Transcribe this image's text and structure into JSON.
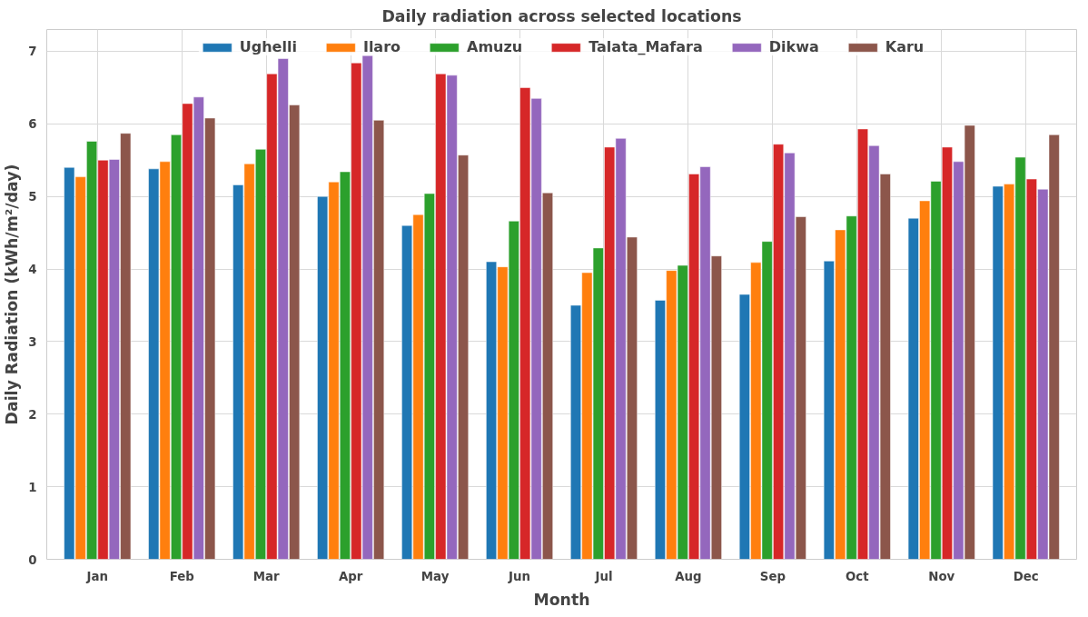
{
  "chart_data": {
    "type": "bar",
    "title": "Daily radiation across selected locations",
    "xlabel": "Month",
    "ylabel": "Daily Radiation (kWh/m²/day)",
    "categories": [
      "Jan",
      "Feb",
      "Mar",
      "Apr",
      "May",
      "Jun",
      "Jul",
      "Aug",
      "Sep",
      "Oct",
      "Nov",
      "Dec"
    ],
    "series": [
      {
        "name": "Ughelli",
        "color": "#1f77b4",
        "values": [
          5.4,
          5.38,
          5.16,
          5.0,
          4.6,
          4.1,
          3.5,
          3.57,
          3.65,
          4.11,
          4.7,
          5.14
        ]
      },
      {
        "name": "Ilaro",
        "color": "#ff7f0e",
        "values": [
          5.27,
          5.48,
          5.45,
          5.2,
          4.75,
          4.03,
          3.95,
          3.98,
          4.09,
          4.54,
          4.94,
          5.17
        ]
      },
      {
        "name": "Amuzu",
        "color": "#2ca02c",
        "values": [
          5.76,
          5.85,
          5.65,
          5.34,
          5.04,
          4.66,
          4.29,
          4.05,
          4.38,
          4.73,
          5.21,
          5.54
        ]
      },
      {
        "name": "Talata_Mafara",
        "color": "#d62728",
        "values": [
          5.5,
          6.28,
          6.69,
          6.84,
          6.69,
          6.5,
          5.68,
          5.31,
          5.72,
          5.93,
          5.68,
          5.24
        ]
      },
      {
        "name": "Dikwa",
        "color": "#9467bd",
        "values": [
          5.51,
          6.37,
          6.9,
          6.94,
          6.67,
          6.35,
          5.8,
          5.41,
          5.6,
          5.7,
          5.48,
          5.1
        ]
      },
      {
        "name": "Karu",
        "color": "#8c564b",
        "values": [
          5.87,
          6.08,
          6.26,
          6.05,
          5.57,
          5.05,
          4.44,
          4.18,
          4.72,
          5.31,
          5.98,
          5.85
        ]
      }
    ],
    "ylim": [
      0,
      7.3
    ],
    "yticks": [
      0,
      1,
      2,
      3,
      4,
      5,
      6,
      7
    ],
    "grid": true,
    "legend": "top"
  }
}
